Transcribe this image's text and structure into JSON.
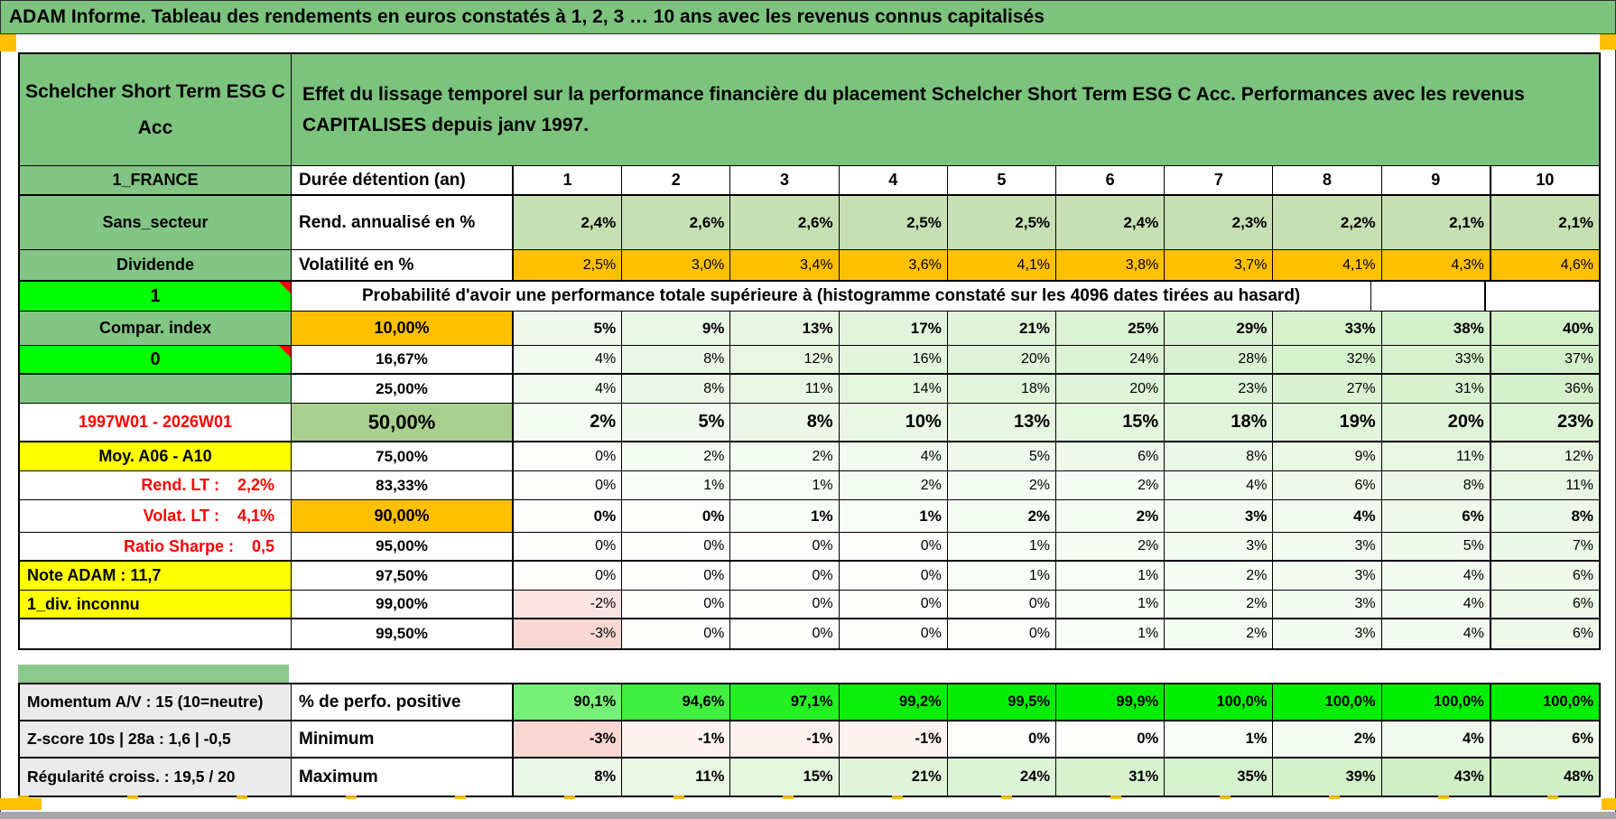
{
  "title_bar": {
    "text": "ADAM Informe. Tableau des rendements en euros constatés à 1, 2, 3 … 10 ans avec les revenus connus capitalisés"
  },
  "header": {
    "fund_name": "Schelcher Short Term ESG C Acc",
    "description": "Effet du lissage temporel sur la performance financière du placement Schelcher Short Term ESG C Acc. Performances avec les revenus CAPITALISES depuis janv 1997."
  },
  "palette": {
    "header_green": "#7CC47E",
    "label_green": "#82C584",
    "cell_light_green": "#C6E0B4",
    "cell_mid_green": "#A9D08E",
    "orange": "#FFC000",
    "bright_green": "#00FF00",
    "yellow": "#FFFF00",
    "gray_label": "#EBEBEB",
    "red_text": "#FF0000",
    "tint_green_max": "#d0efc6",
    "tint_pink_max": "#f8d7d2",
    "perfo_green_lo": "#77F077",
    "perfo_green_hi": "#00EE00"
  },
  "columns": [
    "1",
    "2",
    "3",
    "4",
    "5",
    "6",
    "7",
    "8",
    "9",
    "10"
  ],
  "main_rows": [
    {
      "key": "duree",
      "left": "1_FRANCE",
      "left_style": "green",
      "head": "Durée détention (an)",
      "head_style": "label",
      "cells": [
        "1",
        "2",
        "3",
        "4",
        "5",
        "6",
        "7",
        "8",
        "9",
        "10"
      ],
      "cell_style": "colnum",
      "hclass": "r-duree",
      "thick_bottom": true
    },
    {
      "key": "rend",
      "left": "Sans_secteur",
      "left_style": "green",
      "head": "Rend. annualisé en %",
      "head_style": "label",
      "cells": [
        "2,4%",
        "2,6%",
        "2,6%",
        "2,5%",
        "2,5%",
        "2,4%",
        "2,3%",
        "2,2%",
        "2,1%",
        "2,1%"
      ],
      "cell_style": "fill-green bold",
      "hclass": "r-rend"
    },
    {
      "key": "volat",
      "left": "Dividende",
      "left_style": "green",
      "head": "Volatilité en %",
      "head_style": "label",
      "cells": [
        "2,5%",
        "3,0%",
        "3,4%",
        "3,6%",
        "4,1%",
        "3,8%",
        "3,7%",
        "4,1%",
        "4,3%",
        "4,6%"
      ],
      "cell_style": "fill-orange",
      "hclass": "r-volat",
      "thick_bottom": true
    },
    {
      "key": "prob",
      "left": "1",
      "left_style": "bright",
      "marker": true,
      "merged": "Probabilité d'avoir une performance totale supérieure à (histogramme constaté sur les 4096 dates tirées au hasard)",
      "hclass": "r-prob"
    },
    {
      "key": "p10",
      "left": "Compar. index",
      "left_style": "green",
      "head": "10,00%",
      "head_style": "pct-orange",
      "cells": [
        "5%",
        "9%",
        "13%",
        "17%",
        "21%",
        "25%",
        "29%",
        "33%",
        "38%",
        "40%"
      ],
      "cell_style": "tint bold",
      "hclass": "r-p10"
    },
    {
      "key": "p1667",
      "left": "0",
      "left_style": "bright",
      "marker": true,
      "head": "16,67%",
      "head_style": "pct",
      "cells": [
        "4%",
        "8%",
        "12%",
        "16%",
        "20%",
        "24%",
        "28%",
        "32%",
        "33%",
        "37%"
      ],
      "cell_style": "tint",
      "hclass": "r-std",
      "thick_bottom": true
    },
    {
      "key": "p25",
      "left": "",
      "left_style": "green",
      "head": "25,00%",
      "head_style": "pct",
      "cells": [
        "4%",
        "8%",
        "11%",
        "14%",
        "18%",
        "20%",
        "23%",
        "27%",
        "31%",
        "36%"
      ],
      "cell_style": "tint",
      "hclass": "r-std"
    },
    {
      "key": "p50",
      "left": "1997W01 - 2026W01",
      "left_style": "red",
      "head": "50,00%",
      "head_style": "pct-50",
      "cells": [
        "2%",
        "5%",
        "8%",
        "10%",
        "13%",
        "15%",
        "18%",
        "19%",
        "20%",
        "23%"
      ],
      "cell_style": "tint bold big",
      "hclass": "r-p50",
      "thick_bottom": true
    },
    {
      "key": "p75",
      "left": "Moy. A06 - A10",
      "left_style": "yellow",
      "head": "75,00%",
      "head_style": "pct",
      "cells": [
        "0%",
        "2%",
        "2%",
        "4%",
        "5%",
        "6%",
        "8%",
        "9%",
        "11%",
        "12%"
      ],
      "cell_style": "tint",
      "hclass": "r-std"
    },
    {
      "key": "p8333",
      "left": "Rend. LT :    2,2%",
      "left_style": "red-right",
      "head": "83,33%",
      "head_style": "pct",
      "cells": [
        "0%",
        "1%",
        "1%",
        "2%",
        "2%",
        "2%",
        "4%",
        "6%",
        "8%",
        "11%"
      ],
      "cell_style": "tint",
      "hclass": "r-std"
    },
    {
      "key": "p90",
      "left": "Volat. LT :    4,1%",
      "left_style": "red-right",
      "head": "90,00%",
      "head_style": "pct-orange",
      "cells": [
        "0%",
        "0%",
        "1%",
        "1%",
        "2%",
        "2%",
        "3%",
        "4%",
        "6%",
        "8%"
      ],
      "cell_style": "tint bold",
      "hclass": "r-p90"
    },
    {
      "key": "p95",
      "left": "Ratio Sharpe :    0,5",
      "left_style": "red-right",
      "head": "95,00%",
      "head_style": "pct",
      "cells": [
        "0%",
        "0%",
        "0%",
        "0%",
        "1%",
        "2%",
        "3%",
        "3%",
        "5%",
        "7%"
      ],
      "cell_style": "tint",
      "hclass": "r-std",
      "thick_bottom": true
    },
    {
      "key": "p975",
      "left": "Note ADAM : 11,7",
      "left_style": "yellow-left",
      "head": "97,50%",
      "head_style": "pct",
      "cells": [
        "0%",
        "0%",
        "0%",
        "0%",
        "1%",
        "1%",
        "2%",
        "3%",
        "4%",
        "6%"
      ],
      "cell_style": "tint",
      "hclass": "r-std"
    },
    {
      "key": "p99",
      "left": "1_div. inconnu",
      "left_style": "yellow-left",
      "head": "99,00%",
      "head_style": "pct",
      "cells": [
        "-2%",
        "0%",
        "0%",
        "0%",
        "0%",
        "1%",
        "2%",
        "3%",
        "4%",
        "6%"
      ],
      "cell_style": "tint",
      "hclass": "r-std",
      "thick_bottom": true
    },
    {
      "key": "p995",
      "left": "",
      "left_style": "white",
      "head": "99,50%",
      "head_style": "pct",
      "cells": [
        "-3%",
        "0%",
        "0%",
        "0%",
        "0%",
        "1%",
        "2%",
        "3%",
        "4%",
        "6%"
      ],
      "cell_style": "tint",
      "hclass": "r-std"
    }
  ],
  "bottom_rows": [
    {
      "key": "perfo",
      "left": "Momentum A/V : 15 (10=neutre)",
      "head": "% de perfo. positive",
      "cells": [
        "90,1%",
        "94,6%",
        "97,1%",
        "99,2%",
        "99,5%",
        "99,9%",
        "100,0%",
        "100,0%",
        "100,0%",
        "100,0%"
      ],
      "tint": "perfo"
    },
    {
      "key": "min",
      "left": "Z-score 10s | 28a : 1,6 | -0,5",
      "head": "Minimum",
      "cells": [
        "-3%",
        "-1%",
        "-1%",
        "-1%",
        "0%",
        "0%",
        "1%",
        "2%",
        "4%",
        "6%"
      ],
      "tint": "prob"
    },
    {
      "key": "max",
      "left": "Régularité croiss. : 19,5 / 20",
      "head": "Maximum",
      "cells": [
        "8%",
        "11%",
        "15%",
        "21%",
        "24%",
        "31%",
        "35%",
        "39%",
        "43%",
        "48%"
      ],
      "tint": "prob"
    }
  ]
}
